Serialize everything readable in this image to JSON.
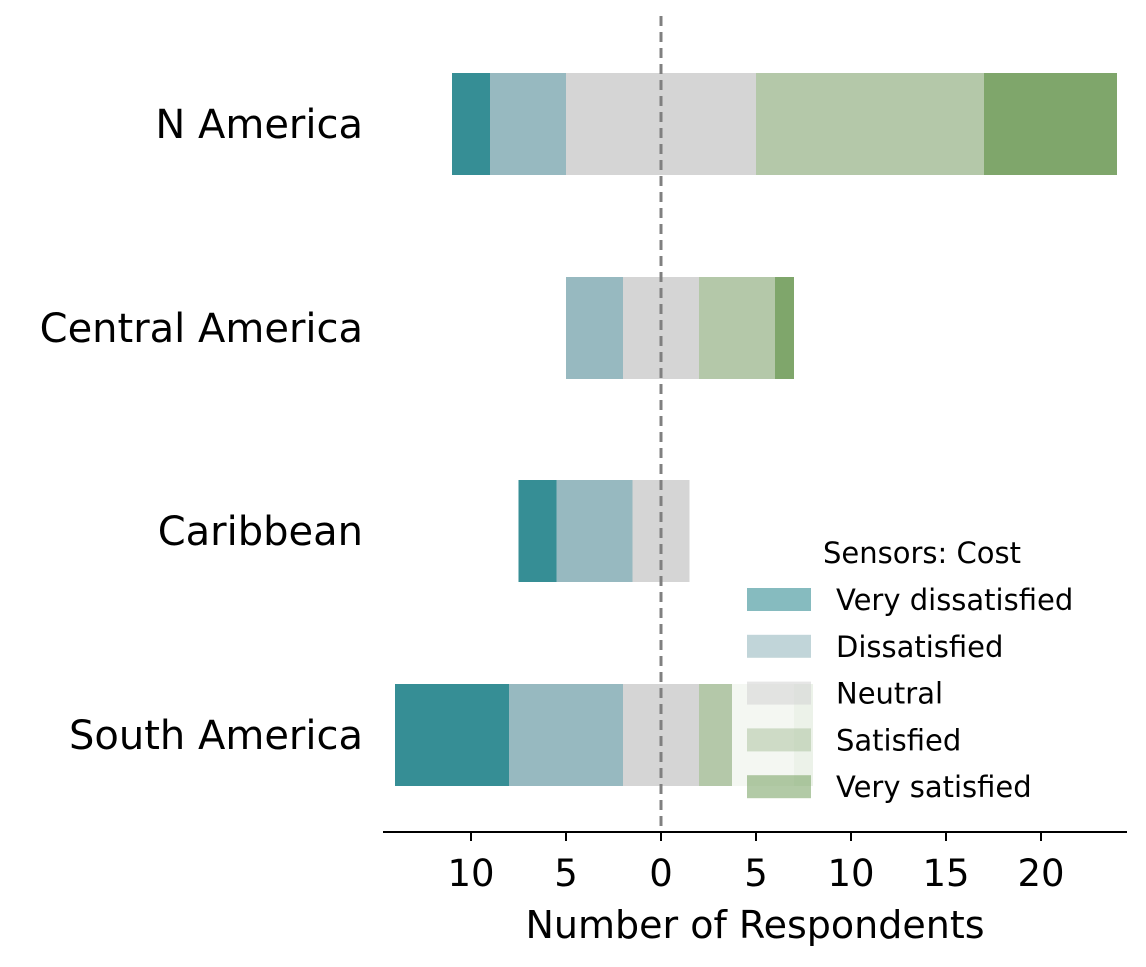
{
  "chart_data": {
    "type": "bar",
    "orientation": "horizontal-diverging-stacked",
    "title": "",
    "xlabel": "Number of Respondents",
    "ylabel": "",
    "categories": [
      "N America",
      "Central America",
      "Caribbean",
      "South America"
    ],
    "center_category": "Neutral",
    "series": [
      {
        "name": "Very dissatisfied",
        "color": "#368e95",
        "values": [
          2,
          0,
          2,
          6
        ]
      },
      {
        "name": "Dissatisfied",
        "color": "#97b9c0",
        "values": [
          4,
          3,
          4,
          6
        ]
      },
      {
        "name": "Neutral",
        "color": "#d5d5d5",
        "values": [
          10,
          4,
          3,
          4
        ]
      },
      {
        "name": "Satisfied",
        "color": "#b4c8a9",
        "values": [
          12,
          4,
          0,
          5
        ]
      },
      {
        "name": "Very satisfied",
        "color": "#7fa66b",
        "values": [
          7,
          1,
          0,
          1
        ]
      }
    ],
    "xlim": [
      -14.5,
      24.5
    ],
    "x_ticks": [
      -10,
      -5,
      0,
      5,
      10,
      15,
      20
    ],
    "x_tick_labels": [
      "10",
      "5",
      "0",
      "5",
      "10",
      "15",
      "20"
    ],
    "zero_line": {
      "style": "dashed",
      "color": "#808080"
    },
    "legend": {
      "title": "Sensors: Cost",
      "placement": "lower-right",
      "alpha": 0.6
    },
    "grid": false
  }
}
